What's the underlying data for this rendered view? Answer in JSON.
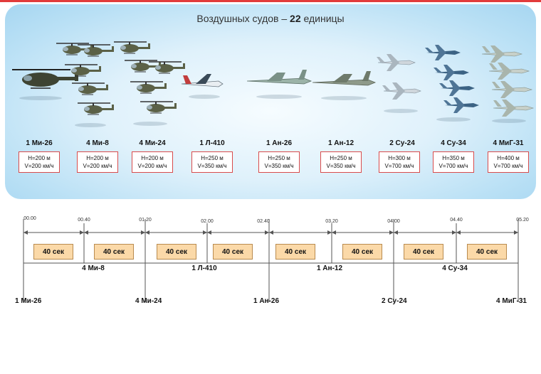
{
  "title_prefix": "Воздушных судов – ",
  "title_count": "22",
  "title_suffix": " единицы",
  "aircraft": [
    {
      "label": "1 Ми-26",
      "h": "H=200 м",
      "v": "V=200 км/ч"
    },
    {
      "label": "4 Ми-8",
      "h": "H=200 м",
      "v": "V=200 км/ч"
    },
    {
      "label": "4 Ми-24",
      "h": "H=200 м",
      "v": "V=200 км/ч"
    },
    {
      "label": "1 Л-410",
      "h": "H=250 м",
      "v": "V=350 км/ч"
    },
    {
      "label": "1 Ан-26",
      "h": "H=250 м",
      "v": "V=350 км/ч"
    },
    {
      "label": "1 Ан-12",
      "h": "H=250 м",
      "v": "V=350 км/ч"
    },
    {
      "label": "2 Су-24",
      "h": "H=300 м",
      "v": "V=700 км/ч"
    },
    {
      "label": "4 Су-34",
      "h": "H=350 м",
      "v": "V=700 км/ч"
    },
    {
      "label": "4 МиГ-31",
      "h": "H=400 м",
      "v": "V=700 км/ч"
    }
  ],
  "timeline": {
    "ticks": [
      "00.00",
      "00.40",
      "01.20",
      "02.00",
      "02.40",
      "03,20",
      "04.00",
      "04.40",
      "05.20"
    ],
    "segment_label": "40 сек",
    "upper_groups": [
      "4 Ми-8",
      "1 Л-410",
      "1 Ан-12",
      "4 Су-34"
    ],
    "lower_labels": [
      "1 Ми-26",
      "4 Ми-24",
      "1 Ан-26",
      "2 Су-24",
      "4 МиГ-31"
    ]
  }
}
